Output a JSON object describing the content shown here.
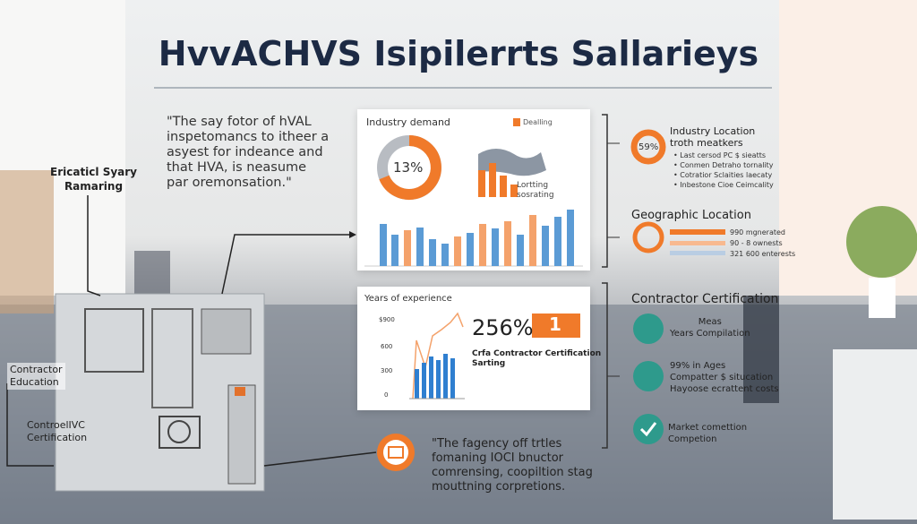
{
  "title": "HvvACHVS Isipilerrts Sallarieys",
  "quote_top": [
    "\"The say fotor of hVAL",
    "inspetomancs to itheer a",
    "asyest for indeance and",
    "that HVA, is neasume",
    "par oremonsation.\""
  ],
  "left_labels": {
    "top": [
      "Ericaticl Syary",
      "Ramaring"
    ],
    "education": [
      "Contractor",
      "Education"
    ],
    "certification": [
      "ControelIVC",
      "Certification"
    ]
  },
  "panel_demand": {
    "title": "Industry demand",
    "legend": "Dealling",
    "donut_label": "13%",
    "side_text": [
      "Lortting",
      "sosrating"
    ]
  },
  "panel_experience": {
    "title": "Years of experience",
    "axis_labels": [
      "$900",
      "600",
      "300",
      "0"
    ],
    "big_number": "256%",
    "badge": "1",
    "heading": [
      "Crfa Contractor Certification",
      "Sarting"
    ]
  },
  "right_location": {
    "donut_label": "59%",
    "title": [
      "Industry Location",
      "troth meatkers"
    ],
    "items": [
      "Last cersod PC $ sieatts",
      "Conmen Detraho tornality",
      "Cotratior Sclaities laecaty",
      "Inbestone Cioe Ceimcality"
    ]
  },
  "right_geographic": {
    "title": "Geographic Location",
    "bars": [
      "990 mgnerated",
      "90 - 8 ownests",
      "321 600 enterests"
    ]
  },
  "right_certification": {
    "title": "Contractor Certification",
    "items": [
      [
        "Meas",
        "Years Compilation"
      ],
      [
        "99% in Ages",
        "Compatter $ situcation",
        "Hayoose ecrattent costs"
      ],
      [
        "Market comettion",
        "Competion"
      ]
    ]
  },
  "quote_bottom": [
    "\"The fagency off trtles",
    "fomaning IOCI bnuctor",
    "comrensing, coopiltion stag",
    "mouttning corpretions."
  ]
}
